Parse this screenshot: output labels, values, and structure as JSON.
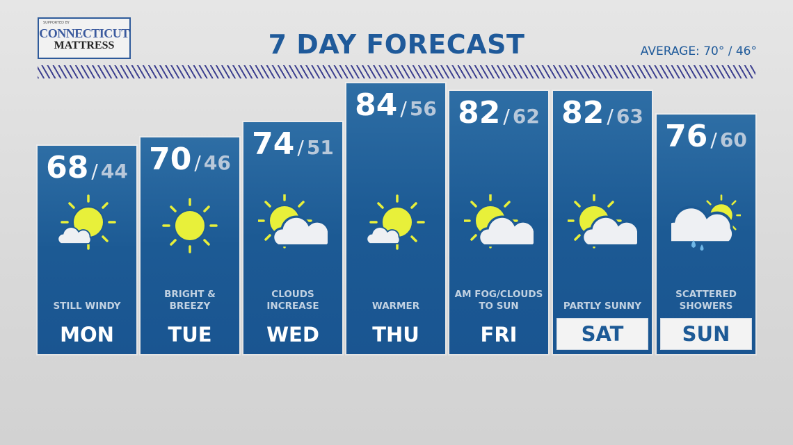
{
  "sponsor": {
    "supported_by": "SUPPORTED BY",
    "line1": "CONNECTICUT",
    "line2": "MATTRESS"
  },
  "header": {
    "title": "7 DAY FORECAST",
    "average": "AVERAGE: 70° / 46°"
  },
  "colors": {
    "panel": "#1c5a94",
    "title": "#1f5a9a",
    "sun": "#e8f03a",
    "rain": "#6fb6e6"
  },
  "days": [
    {
      "day": "MON",
      "high": "68",
      "low": "44",
      "condition": "STILL WINDY",
      "icon": "sun-small-cloud-icon",
      "highlight": false
    },
    {
      "day": "TUE",
      "high": "70",
      "low": "46",
      "condition": "BRIGHT & BREEZY",
      "icon": "sun-icon",
      "highlight": false
    },
    {
      "day": "WED",
      "high": "74",
      "low": "51",
      "condition": "CLOUDS INCREASE",
      "icon": "partly-cloudy-icon",
      "highlight": false
    },
    {
      "day": "THU",
      "high": "84",
      "low": "56",
      "condition": "WARMER",
      "icon": "sun-small-cloud-icon",
      "highlight": false
    },
    {
      "day": "FRI",
      "high": "82",
      "low": "62",
      "condition": "AM FOG/CLOUDS TO SUN",
      "icon": "partly-cloudy-icon",
      "highlight": false
    },
    {
      "day": "SAT",
      "high": "82",
      "low": "63",
      "condition": "PARTLY SUNNY",
      "icon": "partly-cloudy-icon",
      "highlight": true
    },
    {
      "day": "SUN",
      "high": "76",
      "low": "60",
      "condition": "SCATTERED SHOWERS",
      "icon": "showers-icon",
      "highlight": true
    }
  ]
}
